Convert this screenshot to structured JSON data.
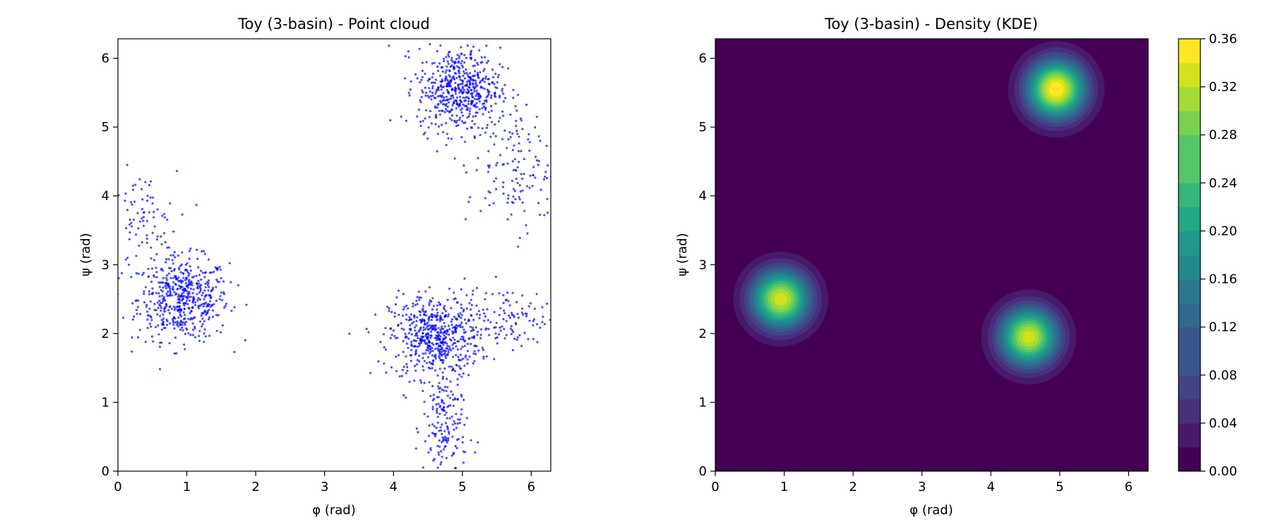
{
  "chart_data": [
    {
      "type": "scatter",
      "title": "Toy (3-basin) - Point cloud",
      "xlabel": "φ (rad)",
      "ylabel": "ψ (rad)",
      "xlim": [
        0,
        6.283
      ],
      "ylim": [
        0,
        6.283
      ],
      "xticks": [
        "0",
        "1",
        "2",
        "3",
        "4",
        "5",
        "6"
      ],
      "yticks": [
        "0",
        "1",
        "2",
        "3",
        "4",
        "5",
        "6"
      ],
      "marker_color": "#0000ff",
      "clusters": [
        {
          "center": [
            0.95,
            2.5
          ],
          "sd": [
            0.33,
            0.3
          ],
          "count": 520
        },
        {
          "center": [
            0.35,
            3.55
          ],
          "sd": [
            0.25,
            0.4
          ],
          "count": 90
        },
        {
          "center": [
            4.6,
            1.95
          ],
          "sd": [
            0.33,
            0.3
          ],
          "count": 560
        },
        {
          "center": [
            4.75,
            0.6
          ],
          "sd": [
            0.16,
            0.45
          ],
          "count": 170
        },
        {
          "center": [
            5.7,
            2.25
          ],
          "sd": [
            0.45,
            0.22
          ],
          "count": 130
        },
        {
          "center": [
            4.95,
            5.55
          ],
          "sd": [
            0.3,
            0.3
          ],
          "count": 540
        },
        {
          "center": [
            5.75,
            4.4
          ],
          "sd": [
            0.35,
            0.45
          ],
          "count": 150
        }
      ],
      "grid": false
    },
    {
      "type": "heatmap",
      "title": "Toy (3-basin) - Density (KDE)",
      "xlabel": "φ (rad)",
      "ylabel": "ψ (rad)",
      "xlim": [
        0,
        6.283
      ],
      "ylim": [
        0,
        6.283
      ],
      "xticks": [
        "0",
        "1",
        "2",
        "3",
        "4",
        "5",
        "6"
      ],
      "yticks": [
        "0",
        "1",
        "2",
        "3",
        "4",
        "5",
        "6"
      ],
      "peaks": [
        {
          "center": [
            0.95,
            2.5
          ],
          "height": 0.33
        },
        {
          "center": [
            4.55,
            1.95
          ],
          "height": 0.33
        },
        {
          "center": [
            4.95,
            5.55
          ],
          "height": 0.36
        }
      ],
      "colorbar": {
        "min": 0.0,
        "max": 0.36,
        "levels": 18,
        "ticks": [
          "0.00",
          "0.04",
          "0.08",
          "0.12",
          "0.16",
          "0.20",
          "0.24",
          "0.28",
          "0.32",
          "0.36"
        ],
        "colormap": [
          "#440154",
          "#481a6c",
          "#472f7d",
          "#414487",
          "#39568c",
          "#31688e",
          "#2a788e",
          "#23888e",
          "#1f988b",
          "#22a884",
          "#35b779",
          "#54c568",
          "#7ad151",
          "#a5db36",
          "#d2e21b",
          "#fde725"
        ]
      },
      "grid": false
    }
  ]
}
